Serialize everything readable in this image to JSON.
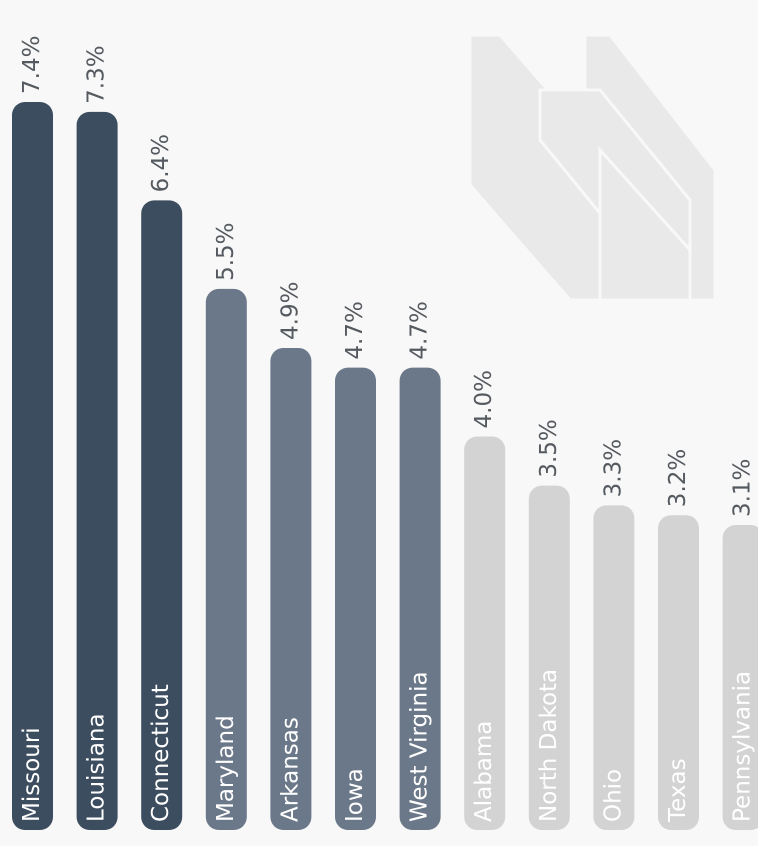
{
  "chart_data": {
    "type": "bar",
    "categories": [
      "Missouri",
      "Louisiana",
      "Connecticut",
      "Maryland",
      "Arkansas",
      "Iowa",
      "West Virginia",
      "Alabama",
      "North Dakota",
      "Ohio",
      "Texas",
      "Pennsylvania"
    ],
    "values": [
      7.4,
      7.3,
      6.4,
      5.5,
      4.9,
      4.7,
      4.7,
      4.0,
      3.5,
      3.3,
      3.2,
      3.1
    ],
    "value_labels": [
      "7.4%",
      "7.3%",
      "6.4%",
      "5.5%",
      "4.9%",
      "4.7%",
      "4.7%",
      "4.0%",
      "3.5%",
      "3.3%",
      "3.2%",
      "3.1%"
    ],
    "colors": [
      "#3c4d60",
      "#3c4d60",
      "#3c4d60",
      "#6b7889",
      "#6b7889",
      "#6b7889",
      "#6b7889",
      "#d3d3d3",
      "#d3d3d3",
      "#d3d3d3",
      "#d3d3d3",
      "#d3d3d3"
    ]
  }
}
